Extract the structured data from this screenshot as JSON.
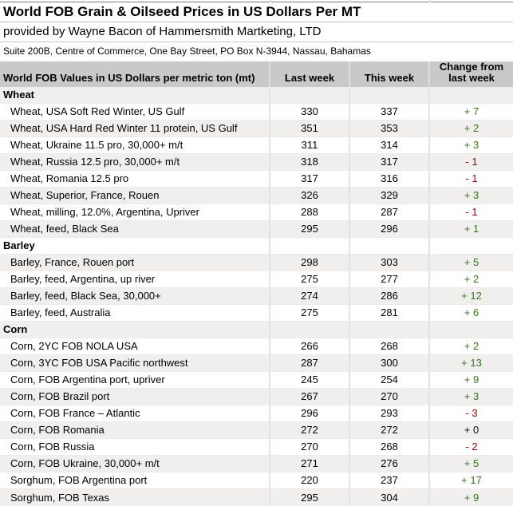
{
  "header": {
    "title": "World FOB Grain & Oilseed Prices in US Dollars Per MT",
    "subtitle": "provided by Wayne Bacon of Hammersmith Martketing, LTD",
    "address": "Suite 200B, Centre of Commerce, One Bay Street, PO Box N-3944, Nassau, Bahamas"
  },
  "colors": {
    "header_row_bg": "#c9c9c9",
    "shaded_row_bg": "#f1efee",
    "positive_change": "#38761d",
    "negative_change": "#990000",
    "zero_change": "#111111",
    "gridline": "#e0e0e0"
  },
  "chart_data": {
    "type": "table",
    "title": "World FOB Grain & Oilseed Prices in US Dollars Per MT",
    "columns": [
      "World FOB Values in US Dollars per metric ton (mt)",
      "Last week",
      "This week",
      "Change from last week"
    ],
    "sections": [
      {
        "name": "Wheat",
        "rows": [
          {
            "label": "Wheat, USA Soft Red Winter, US Gulf",
            "last_week": 330,
            "this_week": 337,
            "change": "+ 7",
            "change_type": "up"
          },
          {
            "label": "Wheat, USA Hard Red Winter 11 protein, US Gulf",
            "last_week": 351,
            "this_week": 353,
            "change": "+ 2",
            "change_type": "up"
          },
          {
            "label": "Wheat, Ukraine 11.5 pro, 30,000+ m/t",
            "last_week": 311,
            "this_week": 314,
            "change": "+ 3",
            "change_type": "up"
          },
          {
            "label": "Wheat, Russia 12.5 pro, 30,000+ m/t",
            "last_week": 318,
            "this_week": 317,
            "change": "- 1",
            "change_type": "down"
          },
          {
            "label": "Wheat, Romania 12.5 pro",
            "last_week": 317,
            "this_week": 316,
            "change": "- 1",
            "change_type": "down"
          },
          {
            "label": "Wheat, Superior, France, Rouen",
            "last_week": 326,
            "this_week": 329,
            "change": "+ 3",
            "change_type": "up"
          },
          {
            "label": "Wheat, milling, 12.0%, Argentina, Upriver",
            "last_week": 288,
            "this_week": 287,
            "change": "- 1",
            "change_type": "down"
          },
          {
            "label": "Wheat, feed, Black Sea",
            "last_week": 295,
            "this_week": 296,
            "change": "+ 1",
            "change_type": "up"
          }
        ]
      },
      {
        "name": "Barley",
        "rows": [
          {
            "label": "Barley, France, Rouen port",
            "last_week": 298,
            "this_week": 303,
            "change": "+ 5",
            "change_type": "up"
          },
          {
            "label": "Barley, feed, Argentina, up river",
            "last_week": 275,
            "this_week": 277,
            "change": "+ 2",
            "change_type": "up"
          },
          {
            "label": "Barley, feed, Black Sea, 30,000+",
            "last_week": 274,
            "this_week": 286,
            "change": "+ 12",
            "change_type": "up"
          },
          {
            "label": "Barley, feed, Australia",
            "last_week": 275,
            "this_week": 281,
            "change": "+ 6",
            "change_type": "up"
          }
        ]
      },
      {
        "name": "Corn",
        "rows": [
          {
            "label": "Corn, 2YC FOB NOLA USA",
            "last_week": 266,
            "this_week": 268,
            "change": "+ 2",
            "change_type": "up"
          },
          {
            "label": "Corn, 3YC FOB USA Pacific northwest",
            "last_week": 287,
            "this_week": 300,
            "change": "+ 13",
            "change_type": "up"
          },
          {
            "label": "Corn, FOB Argentina port, upriver",
            "last_week": 245,
            "this_week": 254,
            "change": "+ 9",
            "change_type": "up"
          },
          {
            "label": "Corn, FOB Brazil port",
            "last_week": 267,
            "this_week": 270,
            "change": "+ 3",
            "change_type": "up"
          },
          {
            "label": "Corn, FOB France – Atlantic",
            "last_week": 296,
            "this_week": 293,
            "change": "- 3",
            "change_type": "down"
          },
          {
            "label": "Corn, FOB Romania",
            "last_week": 272,
            "this_week": 272,
            "change": "+ 0",
            "change_type": "zero"
          },
          {
            "label": "Corn, FOB Russia",
            "last_week": 270,
            "this_week": 268,
            "change": "- 2",
            "change_type": "down"
          },
          {
            "label": "Corn, FOB Ukraine, 30,000+ m/t",
            "last_week": 271,
            "this_week": 276,
            "change": "+ 5",
            "change_type": "up"
          },
          {
            "label": "Sorghum, FOB Argentina port",
            "last_week": 220,
            "this_week": 237,
            "change": "+ 17",
            "change_type": "up"
          },
          {
            "label": "Sorghum, FOB Texas",
            "last_week": 295,
            "this_week": 304,
            "change": "+ 9",
            "change_type": "up"
          }
        ]
      }
    ]
  }
}
